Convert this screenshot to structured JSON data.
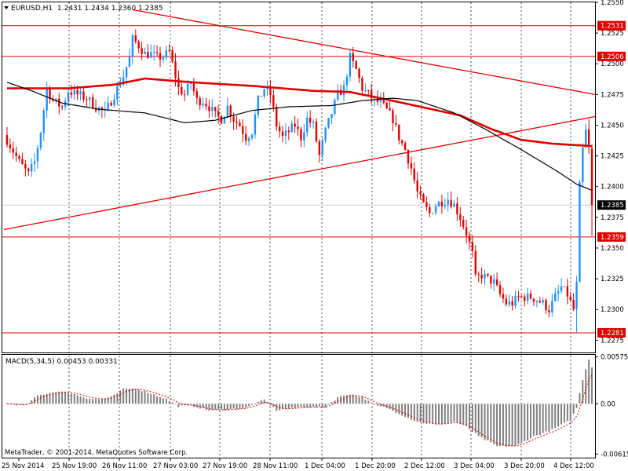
{
  "header": {
    "symbol": "EURUSD,H1",
    "ohlc": "1.2431 1.2434 1.2360 1.2385"
  },
  "macd_header": "MACD(5,34,5) 0.00453 0.00331",
  "copyright": "MetaTrader, © 2001-2014, MetaQuotes Software Corp.",
  "colors": {
    "background": "#ffffff",
    "bull": "#1E90FF",
    "bear": "#E00000",
    "sma": "#E00000",
    "ema": "#000000",
    "trendline": "#E00000",
    "hline": "#E00000",
    "grid": "#000000",
    "macd_hist": "#808080",
    "macd_signal": "#E00000"
  },
  "chart_data": [
    {
      "type": "candlestick",
      "title": "EURUSD,H1",
      "ylim": [
        1.2265,
        1.255
      ],
      "yticks": [
        "1.2550",
        "1.2525",
        "1.2500",
        "1.2475",
        "1.2450",
        "1.2425",
        "1.2400",
        "1.2375",
        "1.2350",
        "1.2325",
        "1.2300",
        "1.2275"
      ],
      "xticks": [
        "25 Nov 2014",
        "25 Nov 19:00",
        "26 Nov 11:00",
        "27 Nov 03:00",
        "27 Nov 19:00",
        "28 Nov 11:00",
        "1 Dec 04:00",
        "1 Dec 20:00",
        "2 Dec 12:00",
        "3 Dec 04:00",
        "3 Dec 20:00",
        "4 Dec 12:00"
      ],
      "price_labels": [
        {
          "value": 1.2531,
          "text": "1.2531",
          "style": "hline"
        },
        {
          "value": 1.2506,
          "text": "1.2506",
          "style": "hline"
        },
        {
          "value": 1.2385,
          "text": "1.2385",
          "style": "current"
        },
        {
          "value": 1.2359,
          "text": "1.2359",
          "style": "hline"
        },
        {
          "value": 1.2281,
          "text": "1.2281",
          "style": "hline"
        }
      ],
      "anchors": [
        {
          "i": 0,
          "p": 1.2438
        },
        {
          "i": 4,
          "p": 1.242
        },
        {
          "i": 7,
          "p": 1.241
        },
        {
          "i": 9,
          "p": 1.242
        },
        {
          "i": 11,
          "p": 1.2445
        },
        {
          "i": 13,
          "p": 1.248
        },
        {
          "i": 15,
          "p": 1.247
        },
        {
          "i": 18,
          "p": 1.2465
        },
        {
          "i": 20,
          "p": 1.2478
        },
        {
          "i": 23,
          "p": 1.2475
        },
        {
          "i": 26,
          "p": 1.2472
        },
        {
          "i": 29,
          "p": 1.2465
        },
        {
          "i": 32,
          "p": 1.246
        },
        {
          "i": 34,
          "p": 1.247
        },
        {
          "i": 36,
          "p": 1.248
        },
        {
          "i": 38,
          "p": 1.249
        },
        {
          "i": 40,
          "p": 1.2505
        },
        {
          "i": 41,
          "p": 1.252
        },
        {
          "i": 43,
          "p": 1.2515
        },
        {
          "i": 45,
          "p": 1.2508
        },
        {
          "i": 47,
          "p": 1.2508
        },
        {
          "i": 49,
          "p": 1.2505
        },
        {
          "i": 51,
          "p": 1.2506
        },
        {
          "i": 53,
          "p": 1.251
        },
        {
          "i": 55,
          "p": 1.249
        },
        {
          "i": 56,
          "p": 1.248
        },
        {
          "i": 58,
          "p": 1.2475
        },
        {
          "i": 60,
          "p": 1.2485
        },
        {
          "i": 62,
          "p": 1.247
        },
        {
          "i": 64,
          "p": 1.247
        },
        {
          "i": 66,
          "p": 1.2465
        },
        {
          "i": 68,
          "p": 1.2458
        },
        {
          "i": 70,
          "p": 1.2455
        },
        {
          "i": 72,
          "p": 1.2465
        },
        {
          "i": 74,
          "p": 1.2455
        },
        {
          "i": 76,
          "p": 1.245
        },
        {
          "i": 78,
          "p": 1.244
        },
        {
          "i": 80,
          "p": 1.2445
        },
        {
          "i": 82,
          "p": 1.247
        },
        {
          "i": 84,
          "p": 1.248
        },
        {
          "i": 86,
          "p": 1.2475
        },
        {
          "i": 88,
          "p": 1.245
        },
        {
          "i": 90,
          "p": 1.244
        },
        {
          "i": 92,
          "p": 1.2445
        },
        {
          "i": 94,
          "p": 1.245
        },
        {
          "i": 96,
          "p": 1.244
        },
        {
          "i": 98,
          "p": 1.2455
        },
        {
          "i": 100,
          "p": 1.245
        },
        {
          "i": 102,
          "p": 1.2425
        },
        {
          "i": 104,
          "p": 1.2445
        },
        {
          "i": 106,
          "p": 1.246
        },
        {
          "i": 108,
          "p": 1.2475
        },
        {
          "i": 110,
          "p": 1.248
        },
        {
          "i": 112,
          "p": 1.2505
        },
        {
          "i": 114,
          "p": 1.2495
        },
        {
          "i": 116,
          "p": 1.248
        },
        {
          "i": 118,
          "p": 1.2475
        },
        {
          "i": 120,
          "p": 1.247
        },
        {
          "i": 122,
          "p": 1.2468
        },
        {
          "i": 124,
          "p": 1.2462
        },
        {
          "i": 126,
          "p": 1.2455
        },
        {
          "i": 128,
          "p": 1.244
        },
        {
          "i": 130,
          "p": 1.243
        },
        {
          "i": 132,
          "p": 1.2415
        },
        {
          "i": 134,
          "p": 1.2395
        },
        {
          "i": 136,
          "p": 1.2385
        },
        {
          "i": 138,
          "p": 1.2378
        },
        {
          "i": 140,
          "p": 1.2385
        },
        {
          "i": 142,
          "p": 1.2388
        },
        {
          "i": 144,
          "p": 1.239
        },
        {
          "i": 146,
          "p": 1.2385
        },
        {
          "i": 148,
          "p": 1.2375
        },
        {
          "i": 150,
          "p": 1.2362
        },
        {
          "i": 152,
          "p": 1.2345
        },
        {
          "i": 153,
          "p": 1.2325
        },
        {
          "i": 155,
          "p": 1.2328
        },
        {
          "i": 157,
          "p": 1.2325
        },
        {
          "i": 159,
          "p": 1.2322
        },
        {
          "i": 161,
          "p": 1.2312
        },
        {
          "i": 163,
          "p": 1.2305
        },
        {
          "i": 165,
          "p": 1.2305
        },
        {
          "i": 167,
          "p": 1.231
        },
        {
          "i": 169,
          "p": 1.231
        },
        {
          "i": 171,
          "p": 1.231
        },
        {
          "i": 173,
          "p": 1.2308
        },
        {
          "i": 175,
          "p": 1.2305
        },
        {
          "i": 177,
          "p": 1.23
        },
        {
          "i": 179,
          "p": 1.231
        },
        {
          "i": 181,
          "p": 1.2318
        },
        {
          "i": 183,
          "p": 1.2312
        },
        {
          "i": 185,
          "p": 1.23
        },
        {
          "i": 186,
          "p": 1.232
        },
        {
          "i": 187,
          "p": 1.24
        },
        {
          "i": 188,
          "p": 1.243
        },
        {
          "i": 189,
          "p": 1.2445
        },
        {
          "i": 190,
          "p": 1.2431
        },
        {
          "i": 191,
          "p": 1.2385
        }
      ],
      "macd_anchors": [
        {
          "i": 0,
          "v": 0.0
        },
        {
          "i": 6,
          "v": -0.0002
        },
        {
          "i": 10,
          "v": 0.001
        },
        {
          "i": 16,
          "v": 0.0015
        },
        {
          "i": 20,
          "v": 0.0014
        },
        {
          "i": 26,
          "v": 0.0007
        },
        {
          "i": 30,
          "v": 0.0005
        },
        {
          "i": 34,
          "v": 0.0008
        },
        {
          "i": 38,
          "v": 0.0018
        },
        {
          "i": 42,
          "v": 0.0019
        },
        {
          "i": 46,
          "v": 0.0014
        },
        {
          "i": 52,
          "v": 0.0006
        },
        {
          "i": 56,
          "v": -0.0003
        },
        {
          "i": 60,
          "v": -0.0002
        },
        {
          "i": 66,
          "v": -0.0008
        },
        {
          "i": 72,
          "v": -0.0007
        },
        {
          "i": 78,
          "v": -0.0005
        },
        {
          "i": 84,
          "v": 0.0005
        },
        {
          "i": 88,
          "v": -0.0008
        },
        {
          "i": 92,
          "v": -0.0006
        },
        {
          "i": 96,
          "v": -0.0004
        },
        {
          "i": 104,
          "v": -0.0004
        },
        {
          "i": 108,
          "v": 0.0008
        },
        {
          "i": 112,
          "v": 0.0012
        },
        {
          "i": 116,
          "v": 0.0008
        },
        {
          "i": 120,
          "v": -0.0002
        },
        {
          "i": 124,
          "v": -0.0005
        },
        {
          "i": 128,
          "v": -0.0012
        },
        {
          "i": 134,
          "v": -0.0022
        },
        {
          "i": 140,
          "v": -0.0026
        },
        {
          "i": 146,
          "v": -0.0022
        },
        {
          "i": 150,
          "v": -0.0028
        },
        {
          "i": 154,
          "v": -0.004
        },
        {
          "i": 160,
          "v": -0.0052
        },
        {
          "i": 166,
          "v": -0.0052
        },
        {
          "i": 172,
          "v": -0.004
        },
        {
          "i": 178,
          "v": -0.0032
        },
        {
          "i": 184,
          "v": -0.002
        },
        {
          "i": 186,
          "v": -0.0005
        },
        {
          "i": 188,
          "v": 0.003
        },
        {
          "i": 190,
          "v": 0.0055
        },
        {
          "i": 191,
          "v": 0.0045
        }
      ],
      "bar_count": 192,
      "sma_anchors": [
        {
          "i": 0,
          "p": 1.248
        },
        {
          "i": 20,
          "p": 1.248
        },
        {
          "i": 35,
          "p": 1.2483
        },
        {
          "i": 45,
          "p": 1.2488
        },
        {
          "i": 60,
          "p": 1.2485
        },
        {
          "i": 80,
          "p": 1.2482
        },
        {
          "i": 100,
          "p": 1.2478
        },
        {
          "i": 112,
          "p": 1.2477
        },
        {
          "i": 122,
          "p": 1.2472
        },
        {
          "i": 135,
          "p": 1.2465
        },
        {
          "i": 148,
          "p": 1.2458
        },
        {
          "i": 158,
          "p": 1.2447
        },
        {
          "i": 168,
          "p": 1.2438
        },
        {
          "i": 178,
          "p": 1.2435
        },
        {
          "i": 191,
          "p": 1.2433
        }
      ],
      "ema_anchors": [
        {
          "i": 0,
          "p": 1.2485
        },
        {
          "i": 8,
          "p": 1.2478
        },
        {
          "i": 18,
          "p": 1.2468
        },
        {
          "i": 30,
          "p": 1.2463
        },
        {
          "i": 45,
          "p": 1.246
        },
        {
          "i": 58,
          "p": 1.2452
        },
        {
          "i": 68,
          "p": 1.2454
        },
        {
          "i": 80,
          "p": 1.2462
        },
        {
          "i": 92,
          "p": 1.2465
        },
        {
          "i": 106,
          "p": 1.2466
        },
        {
          "i": 116,
          "p": 1.247
        },
        {
          "i": 126,
          "p": 1.2472
        },
        {
          "i": 134,
          "p": 1.247
        },
        {
          "i": 146,
          "p": 1.246
        },
        {
          "i": 156,
          "p": 1.2447
        },
        {
          "i": 168,
          "p": 1.243
        },
        {
          "i": 180,
          "p": 1.2412
        },
        {
          "i": 186,
          "p": 1.2402
        },
        {
          "i": 191,
          "p": 1.2397
        }
      ],
      "trendlines": [
        {
          "from": {
            "i": 42,
            "p": 1.2544
          },
          "to": {
            "i": 191,
            "p": 1.2475
          }
        },
        {
          "from": {
            "i": 0,
            "p": 1.2365
          },
          "to": {
            "i": 191,
            "p": 1.2457
          }
        }
      ]
    },
    {
      "type": "bar",
      "title": "MACD(5,34,5) 0.00453 0.00331",
      "ylim": [
        -0.0066,
        0.006
      ],
      "yticks": [
        "0.00575",
        "0.00",
        "-0.00615"
      ]
    }
  ]
}
